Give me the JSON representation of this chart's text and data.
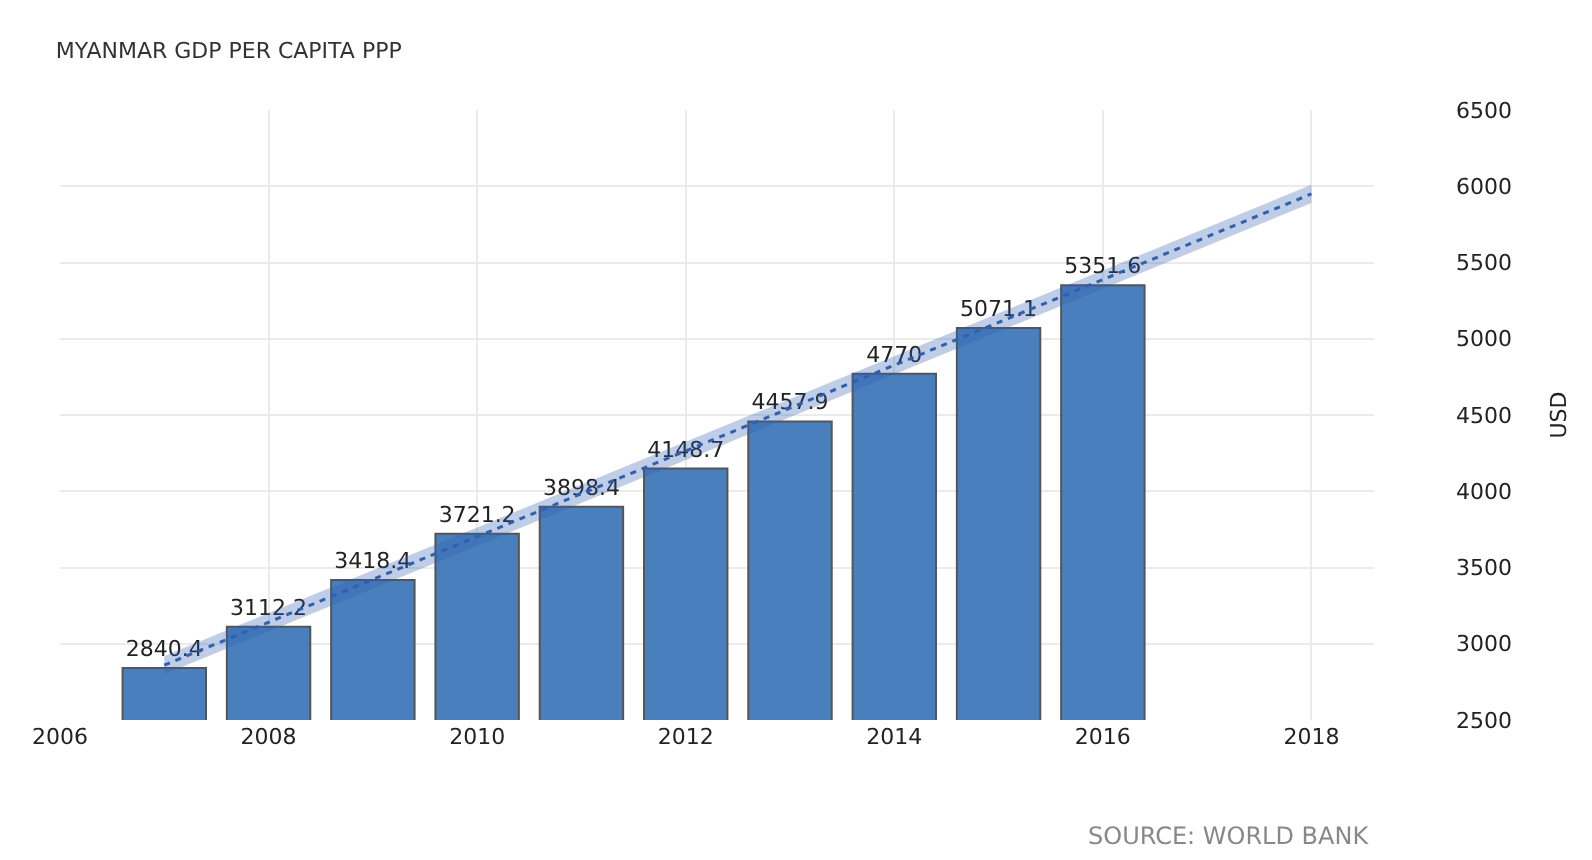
{
  "chart_data": {
    "type": "bar",
    "title": "MYANMAR GDP PER CAPITA PPP",
    "ylabel": "USD",
    "annotations": [
      "SOURCE: WORLD BANK"
    ],
    "x": [
      2007,
      2008,
      2009,
      2010,
      2011,
      2012,
      2013,
      2014,
      2015,
      2016
    ],
    "series": [
      {
        "color": "#4a7fbd",
        "values": [
          2840.4,
          3112.2,
          3418.4,
          3721.2,
          3898.4,
          4148.7,
          4457.9,
          4770,
          5071.1,
          5351.6
        ],
        "value_labels": [
          "2840.4",
          "3112.2",
          "3418.4",
          "3721.2",
          "3898.4",
          "4148.7",
          "4457.9",
          "4770",
          "5071.1",
          "5351.6"
        ]
      },
      {
        "type": "line",
        "color": "#2f5fb0",
        "line_style": "dotted",
        "x": [
          2007,
          2018
        ],
        "values": [
          2860,
          5950
        ],
        "lower": [
          2800,
          5890
        ],
        "upper": [
          2920,
          6010
        ]
      }
    ],
    "xlim": [
      2006,
      2018.6
    ],
    "xticks": [
      2006,
      2008,
      2010,
      2012,
      2014,
      2016,
      2018
    ],
    "ylim": [
      2500,
      6500
    ],
    "yticks": [
      2500,
      3000,
      3500,
      4000,
      4500,
      5000,
      5500,
      6000,
      6500
    ],
    "grid": true
  }
}
